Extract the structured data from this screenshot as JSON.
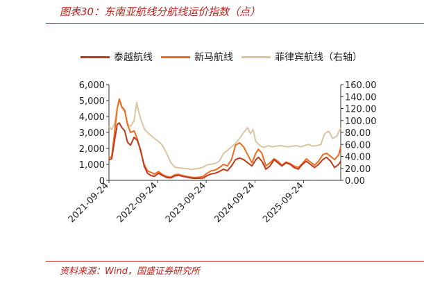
{
  "figure": {
    "title": "图表30：东南亚航线分航线运价指数（点）",
    "source": "资料来源：Wind，国盛证券研究所"
  },
  "colors": {
    "series_thai": "#c0391b",
    "series_sgmy": "#f06a1e",
    "series_ph": "#dcc4a0",
    "accent": "#c0201a"
  },
  "chart_data": {
    "type": "line",
    "title": "",
    "xlabel": "",
    "ylabel": "",
    "x_ticks": [
      "2021-09-24",
      "2022-09-24",
      "2023-09-24",
      "2024-09-24",
      "2025-09-24"
    ],
    "x_range": [
      "2021-09-24",
      "2026-06-30"
    ],
    "ylim_left": [
      0,
      6000
    ],
    "yticks_left": [
      "0",
      "1,000",
      "2,000",
      "3,000",
      "4,000",
      "5,000",
      "6,000"
    ],
    "ylim_right": [
      0,
      160
    ],
    "yticks_right": [
      "0.00",
      "20.00",
      "40.00",
      "60.00",
      "80.00",
      "100.00",
      "120.00",
      "140.00",
      "160.00"
    ],
    "legend_position": "top",
    "grid": false,
    "series": [
      {
        "name": "泰越航线",
        "axis": "left",
        "points": [
          [
            "2021-09-24",
            1300
          ],
          [
            "2021-10-15",
            1350
          ],
          [
            "2021-11-05",
            2500
          ],
          [
            "2021-11-25",
            3500
          ],
          [
            "2021-12-10",
            3600
          ],
          [
            "2021-12-31",
            3300
          ],
          [
            "2022-01-20",
            3100
          ],
          [
            "2022-02-10",
            2400
          ],
          [
            "2022-03-05",
            2200
          ],
          [
            "2022-04-01",
            2700
          ],
          [
            "2022-04-25",
            2500
          ],
          [
            "2022-05-20",
            1900
          ],
          [
            "2022-06-15",
            900
          ],
          [
            "2022-07-10",
            450
          ],
          [
            "2022-08-05",
            300
          ],
          [
            "2022-09-01",
            250
          ],
          [
            "2022-10-01",
            450
          ],
          [
            "2022-11-01",
            300
          ],
          [
            "2022-12-01",
            180
          ],
          [
            "2023-01-01",
            150
          ],
          [
            "2023-02-01",
            280
          ],
          [
            "2023-03-01",
            320
          ],
          [
            "2023-04-01",
            250
          ],
          [
            "2023-05-01",
            200
          ],
          [
            "2023-06-01",
            150
          ],
          [
            "2023-07-01",
            120
          ],
          [
            "2023-08-01",
            130
          ],
          [
            "2023-09-01",
            140
          ],
          [
            "2023-10-01",
            300
          ],
          [
            "2023-11-01",
            400
          ],
          [
            "2023-12-01",
            450
          ],
          [
            "2024-01-01",
            550
          ],
          [
            "2024-02-01",
            700
          ],
          [
            "2024-03-01",
            600
          ],
          [
            "2024-04-01",
            900
          ],
          [
            "2024-05-01",
            1300
          ],
          [
            "2024-06-01",
            1400
          ],
          [
            "2024-07-01",
            1300
          ],
          [
            "2024-08-01",
            1100
          ],
          [
            "2024-09-01",
            900
          ],
          [
            "2024-10-01",
            1300
          ],
          [
            "2024-10-20",
            1450
          ],
          [
            "2024-11-15",
            1200
          ],
          [
            "2024-12-15",
            700
          ],
          [
            "2025-01-15",
            900
          ],
          [
            "2025-02-15",
            1300
          ],
          [
            "2025-03-15",
            1100
          ],
          [
            "2025-04-15",
            900
          ],
          [
            "2025-05-15",
            1100
          ],
          [
            "2025-06-15",
            1000
          ],
          [
            "2025-07-15",
            800
          ],
          [
            "2025-08-15",
            700
          ],
          [
            "2025-09-15",
            1000
          ],
          [
            "2025-10-15",
            1200
          ],
          [
            "2025-11-15",
            1000
          ],
          [
            "2025-12-15",
            800
          ],
          [
            "2026-01-15",
            1000
          ],
          [
            "2026-02-15",
            1300
          ],
          [
            "2026-03-15",
            1450
          ],
          [
            "2026-04-15",
            1200
          ],
          [
            "2026-05-15",
            800
          ],
          [
            "2026-06-15",
            1000
          ],
          [
            "2026-06-30",
            1200
          ]
        ]
      },
      {
        "name": "新马航线",
        "axis": "left",
        "points": [
          [
            "2021-09-24",
            1400
          ],
          [
            "2021-10-15",
            1500
          ],
          [
            "2021-11-05",
            3000
          ],
          [
            "2021-11-25",
            4500
          ],
          [
            "2021-12-10",
            5100
          ],
          [
            "2021-12-31",
            4600
          ],
          [
            "2022-01-20",
            4400
          ],
          [
            "2022-02-10",
            3500
          ],
          [
            "2022-03-05",
            3000
          ],
          [
            "2022-04-01",
            3100
          ],
          [
            "2022-04-25",
            2600
          ],
          [
            "2022-05-20",
            1800
          ],
          [
            "2022-06-15",
            1000
          ],
          [
            "2022-07-10",
            600
          ],
          [
            "2022-08-05",
            500
          ],
          [
            "2022-09-01",
            400
          ],
          [
            "2022-10-01",
            550
          ],
          [
            "2022-11-01",
            350
          ],
          [
            "2022-12-01",
            250
          ],
          [
            "2023-01-01",
            200
          ],
          [
            "2023-02-01",
            350
          ],
          [
            "2023-03-01",
            380
          ],
          [
            "2023-04-01",
            300
          ],
          [
            "2023-05-01",
            250
          ],
          [
            "2023-06-01",
            200
          ],
          [
            "2023-07-01",
            180
          ],
          [
            "2023-08-01",
            200
          ],
          [
            "2023-09-01",
            250
          ],
          [
            "2023-10-01",
            450
          ],
          [
            "2023-11-01",
            600
          ],
          [
            "2023-12-01",
            650
          ],
          [
            "2024-01-01",
            800
          ],
          [
            "2024-02-01",
            1000
          ],
          [
            "2024-03-01",
            900
          ],
          [
            "2024-04-01",
            1300
          ],
          [
            "2024-05-01",
            2200
          ],
          [
            "2024-06-01",
            2350
          ],
          [
            "2024-07-01",
            2100
          ],
          [
            "2024-08-01",
            1600
          ],
          [
            "2024-09-01",
            1100
          ],
          [
            "2024-10-01",
            1700
          ],
          [
            "2024-10-20",
            1950
          ],
          [
            "2024-11-15",
            1700
          ],
          [
            "2024-12-15",
            900
          ],
          [
            "2025-01-15",
            1100
          ],
          [
            "2025-02-15",
            1350
          ],
          [
            "2025-03-15",
            1200
          ],
          [
            "2025-04-15",
            950
          ],
          [
            "2025-05-15",
            1150
          ],
          [
            "2025-06-15",
            1050
          ],
          [
            "2025-07-15",
            900
          ],
          [
            "2025-08-15",
            800
          ],
          [
            "2025-09-15",
            1050
          ],
          [
            "2025-10-15",
            1350
          ],
          [
            "2025-11-15",
            1150
          ],
          [
            "2025-12-15",
            950
          ],
          [
            "2026-01-15",
            1200
          ],
          [
            "2026-02-15",
            1600
          ],
          [
            "2026-03-15",
            1700
          ],
          [
            "2026-04-15",
            1500
          ],
          [
            "2026-05-15",
            1300
          ],
          [
            "2026-06-15",
            1600
          ],
          [
            "2026-06-30",
            2100
          ]
        ]
      },
      {
        "name": "菲律宾航线（右轴）",
        "axis": "right",
        "points": [
          [
            "2021-09-24",
            90
          ],
          [
            "2021-10-15",
            85
          ],
          [
            "2021-11-05",
            95
          ],
          [
            "2021-11-25",
            120
          ],
          [
            "2021-12-10",
            135
          ],
          [
            "2021-12-31",
            120
          ],
          [
            "2022-01-20",
            115
          ],
          [
            "2022-02-10",
            95
          ],
          [
            "2022-03-05",
            90
          ],
          [
            "2022-04-01",
            100
          ],
          [
            "2022-04-20",
            130
          ],
          [
            "2022-05-10",
            110
          ],
          [
            "2022-06-01",
            95
          ],
          [
            "2022-06-20",
            85
          ],
          [
            "2022-07-10",
            80
          ],
          [
            "2022-08-05",
            75
          ],
          [
            "2022-09-01",
            70
          ],
          [
            "2022-10-01",
            65
          ],
          [
            "2022-11-01",
            58
          ],
          [
            "2022-12-01",
            45
          ],
          [
            "2023-01-01",
            30
          ],
          [
            "2023-02-01",
            22
          ],
          [
            "2023-03-01",
            21
          ],
          [
            "2023-04-01",
            20
          ],
          [
            "2023-05-01",
            20
          ],
          [
            "2023-06-01",
            18
          ],
          [
            "2023-07-01",
            19
          ],
          [
            "2023-08-01",
            20
          ],
          [
            "2023-09-01",
            22
          ],
          [
            "2023-10-01",
            26
          ],
          [
            "2023-11-01",
            27
          ],
          [
            "2023-12-01",
            28
          ],
          [
            "2024-01-01",
            32
          ],
          [
            "2024-02-01",
            45
          ],
          [
            "2024-03-01",
            50
          ],
          [
            "2024-04-01",
            56
          ],
          [
            "2024-05-01",
            62
          ],
          [
            "2024-06-01",
            70
          ],
          [
            "2024-07-01",
            80
          ],
          [
            "2024-08-01",
            88
          ],
          [
            "2024-08-20",
            78
          ],
          [
            "2024-09-10",
            85
          ],
          [
            "2024-10-01",
            65
          ],
          [
            "2024-11-01",
            58
          ],
          [
            "2024-12-01",
            55
          ],
          [
            "2025-01-01",
            58
          ],
          [
            "2025-02-01",
            56
          ],
          [
            "2025-03-01",
            57
          ],
          [
            "2025-04-01",
            58
          ],
          [
            "2025-05-01",
            57
          ],
          [
            "2025-06-01",
            56
          ],
          [
            "2025-07-01",
            57
          ],
          [
            "2025-08-01",
            58
          ],
          [
            "2025-09-01",
            56
          ],
          [
            "2025-10-01",
            58
          ],
          [
            "2025-11-01",
            60
          ],
          [
            "2025-12-01",
            57
          ],
          [
            "2026-01-01",
            58
          ],
          [
            "2026-02-01",
            60
          ],
          [
            "2026-03-01",
            78
          ],
          [
            "2026-04-01",
            82
          ],
          [
            "2026-05-01",
            70
          ],
          [
            "2026-06-01",
            74
          ],
          [
            "2026-06-30",
            88
          ]
        ]
      }
    ]
  }
}
